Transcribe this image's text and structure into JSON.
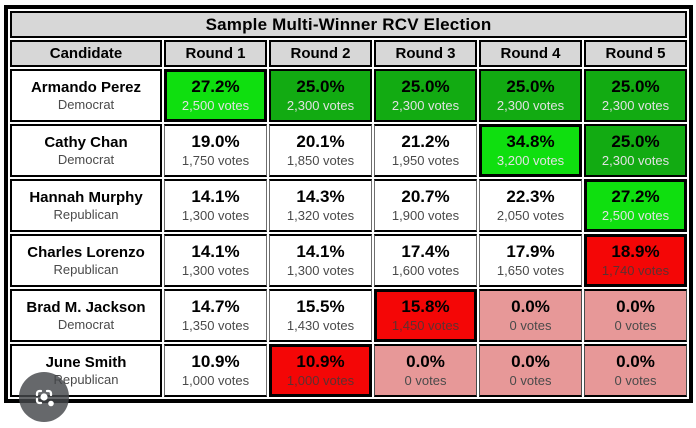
{
  "title": "Sample Multi-Winner RCV Election",
  "columns": [
    "Candidate",
    "Round 1",
    "Round 2",
    "Round 3",
    "Round 4",
    "Round 5"
  ],
  "colors": {
    "header_gray": "#d7d7d7",
    "winner_green": "#0fdf0f",
    "elected_green": "#12ab12",
    "eliminated_red": "#f40606",
    "out_pink": "#e79898",
    "border_black": "#000000"
  },
  "rows": [
    {
      "name": "Armando Perez",
      "party": "Democrat",
      "rounds": [
        {
          "pct": "27.2%",
          "votes": "2,500 votes",
          "state": "winner"
        },
        {
          "pct": "25.0%",
          "votes": "2,300 votes",
          "state": "elected"
        },
        {
          "pct": "25.0%",
          "votes": "2,300 votes",
          "state": "elected"
        },
        {
          "pct": "25.0%",
          "votes": "2,300 votes",
          "state": "elected"
        },
        {
          "pct": "25.0%",
          "votes": "2,300 votes",
          "state": "elected"
        }
      ]
    },
    {
      "name": "Cathy Chan",
      "party": "Democrat",
      "rounds": [
        {
          "pct": "19.0%",
          "votes": "1,750 votes",
          "state": "neutral"
        },
        {
          "pct": "20.1%",
          "votes": "1,850 votes",
          "state": "neutral"
        },
        {
          "pct": "21.2%",
          "votes": "1,950 votes",
          "state": "neutral"
        },
        {
          "pct": "34.8%",
          "votes": "3,200 votes",
          "state": "winner"
        },
        {
          "pct": "25.0%",
          "votes": "2,300 votes",
          "state": "elected"
        }
      ]
    },
    {
      "name": "Hannah Murphy",
      "party": "Republican",
      "rounds": [
        {
          "pct": "14.1%",
          "votes": "1,300 votes",
          "state": "neutral"
        },
        {
          "pct": "14.3%",
          "votes": "1,320 votes",
          "state": "neutral"
        },
        {
          "pct": "20.7%",
          "votes": "1,900 votes",
          "state": "neutral"
        },
        {
          "pct": "22.3%",
          "votes": "2,050 votes",
          "state": "neutral"
        },
        {
          "pct": "27.2%",
          "votes": "2,500 votes",
          "state": "winner"
        }
      ]
    },
    {
      "name": "Charles Lorenzo",
      "party": "Republican",
      "rounds": [
        {
          "pct": "14.1%",
          "votes": "1,300 votes",
          "state": "neutral"
        },
        {
          "pct": "14.1%",
          "votes": "1,300 votes",
          "state": "neutral"
        },
        {
          "pct": "17.4%",
          "votes": "1,600 votes",
          "state": "neutral"
        },
        {
          "pct": "17.9%",
          "votes": "1,650 votes",
          "state": "neutral"
        },
        {
          "pct": "18.9%",
          "votes": "1,740 votes",
          "state": "eliminated"
        }
      ]
    },
    {
      "name": "Brad M. Jackson",
      "party": "Democrat",
      "rounds": [
        {
          "pct": "14.7%",
          "votes": "1,350 votes",
          "state": "neutral"
        },
        {
          "pct": "15.5%",
          "votes": "1,430 votes",
          "state": "neutral"
        },
        {
          "pct": "15.8%",
          "votes": "1,450 votes",
          "state": "eliminated"
        },
        {
          "pct": "0.0%",
          "votes": "0 votes",
          "state": "out"
        },
        {
          "pct": "0.0%",
          "votes": "0 votes",
          "state": "out"
        }
      ]
    },
    {
      "name": "June Smith",
      "party": "Republican",
      "rounds": [
        {
          "pct": "10.9%",
          "votes": "1,000 votes",
          "state": "neutral"
        },
        {
          "pct": "10.9%",
          "votes": "1,000 votes",
          "state": "eliminated"
        },
        {
          "pct": "0.0%",
          "votes": "0 votes",
          "state": "out"
        },
        {
          "pct": "0.0%",
          "votes": "0 votes",
          "state": "out"
        },
        {
          "pct": "0.0%",
          "votes": "0 votes",
          "state": "out"
        }
      ]
    }
  ],
  "overlay": {
    "lens_icon": "google-lens-icon"
  }
}
